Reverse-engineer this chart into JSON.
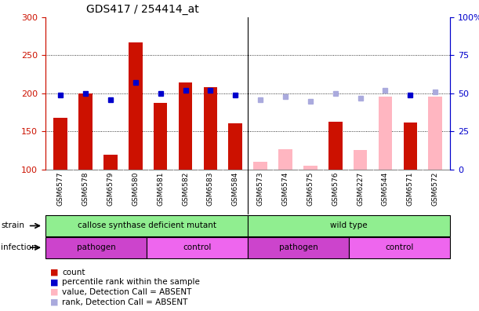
{
  "title": "GDS417 / 254414_at",
  "samples": [
    "GSM6577",
    "GSM6578",
    "GSM6579",
    "GSM6580",
    "GSM6581",
    "GSM6582",
    "GSM6583",
    "GSM6584",
    "GSM6573",
    "GSM6574",
    "GSM6575",
    "GSM6576",
    "GSM6227",
    "GSM6544",
    "GSM6571",
    "GSM6572"
  ],
  "count_values": [
    168,
    200,
    119,
    267,
    187,
    214,
    208,
    161,
    null,
    null,
    null,
    163,
    null,
    null,
    162,
    null
  ],
  "count_absent": [
    null,
    null,
    null,
    null,
    null,
    null,
    null,
    null,
    110,
    127,
    105,
    null,
    126,
    196,
    null,
    196
  ],
  "rank_present": [
    49,
    50,
    46,
    57,
    50,
    52,
    52,
    49,
    null,
    null,
    null,
    null,
    null,
    null,
    49,
    null
  ],
  "rank_absent": [
    null,
    null,
    null,
    null,
    null,
    null,
    null,
    null,
    46,
    48,
    45,
    50,
    47,
    52,
    null,
    51
  ],
  "ylim_left": [
    100,
    300
  ],
  "ylim_right": [
    0,
    100
  ],
  "yticks_left": [
    100,
    150,
    200,
    250,
    300
  ],
  "yticks_right": [
    0,
    25,
    50,
    75,
    100
  ],
  "ytick_labels_right": [
    "0",
    "25",
    "50",
    "75",
    "100%"
  ],
  "bar_width": 0.55,
  "color_red": "#CC1100",
  "color_pink": "#FFB6C1",
  "color_blue": "#0000CC",
  "color_lightblue": "#AAAADD",
  "color_green": "#90EE90",
  "color_magenta1": "#CC44CC",
  "color_magenta2": "#EE66EE",
  "hgrid_values": [
    150,
    200,
    250
  ],
  "strain_labels": [
    "callose synthase deficient mutant",
    "wild type"
  ],
  "infection_labels": [
    "pathogen",
    "control",
    "pathogen",
    "control"
  ],
  "legend_items": [
    {
      "color": "#CC1100",
      "label": "count"
    },
    {
      "color": "#0000CC",
      "label": "percentile rank within the sample"
    },
    {
      "color": "#FFB6C1",
      "label": "value, Detection Call = ABSENT"
    },
    {
      "color": "#AAAADD",
      "label": "rank, Detection Call = ABSENT"
    }
  ]
}
